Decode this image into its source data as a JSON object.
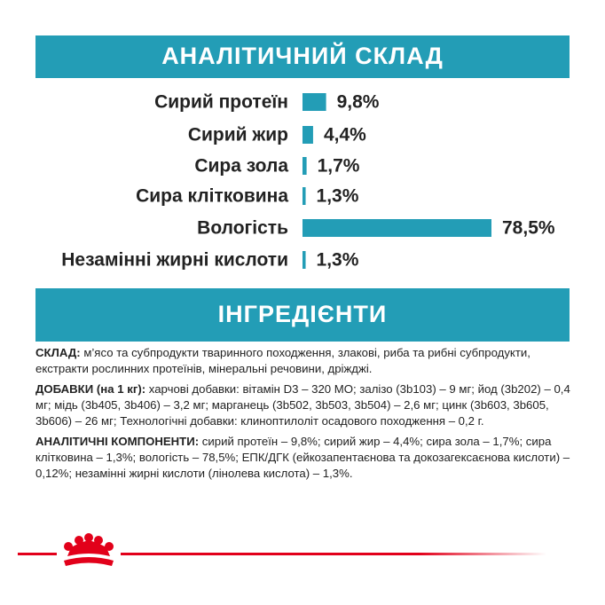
{
  "chart_data": {
    "type": "bar",
    "orientation": "horizontal",
    "title": "АНАЛІТИЧНИЙ СКЛАД",
    "categories": [
      "Сирий протеїн",
      "Сирий жир",
      "Сира зола",
      "Сира клітковина",
      "Вологість",
      "Незамінні жирні кислоти"
    ],
    "values": [
      9.8,
      4.4,
      1.7,
      1.3,
      78.5,
      1.3
    ],
    "value_labels": [
      "9,8%",
      "4,4%",
      "1,7%",
      "1,3%",
      "78,5%",
      "1,3%"
    ],
    "color": "#239db6"
  },
  "ingredients": {
    "title": "ІНГРЕДІЄНТИ",
    "paragraphs": [
      {
        "label": "СКЛАД:",
        "text": "м’ясо та субпродукти тваринного походження, злакові, риба та рибні субпродукти, екстракти рослинних протеїнів, мінеральні речовини, дріжджі."
      },
      {
        "label": "ДОБАВКИ (на 1 кг):",
        "text": "харчові добавки: вітамін D3 – 320 МО; залізо (3b103) – 9 мг; йод (3b202) – 0,4 мг; мідь (3b405, 3b406) – 3,2 мг; марганець (3b502, 3b503, 3b504) – 2,6 мг; цинк (3b603, 3b605, 3b606) – 26 мг; Технологічні добавки: клиноптилоліт осадового походження – 0,2 г."
      },
      {
        "label": "АНАЛІТИЧНІ КОМПОНЕНТИ:",
        "text": "сирий протеїн – 9,8%; сирий жир – 4,4%; сира зола – 1,7%; сира клітковина – 1,3%; вологість – 78,5%; ЕПК/ДГК (ейкозапентаєнова та докозагексаєнова кислоти) – 0,12%; незамінні жирні кислоти (лінолева кислота) – 1,3%."
      }
    ]
  }
}
